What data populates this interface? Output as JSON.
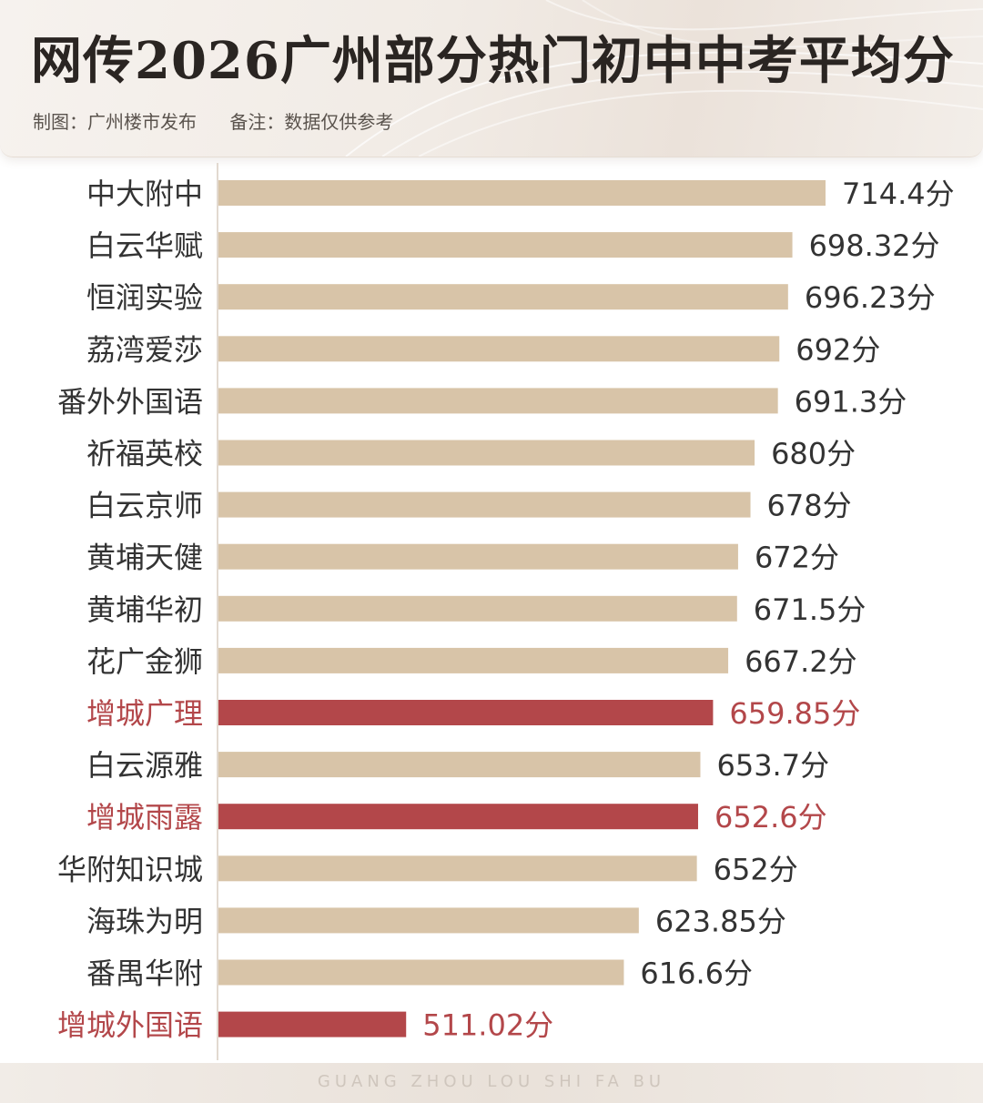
{
  "title": "网传2026广州部分热门初中中考平均分",
  "credit": "制图：广州楼市发布",
  "note": "备注：数据仅供参考",
  "footer": "GUANG ZHOU LOU SHI FA BU",
  "colors": {
    "bar": "#d8c4a8",
    "highlight_bar": "#b3474a",
    "label": "#333333",
    "highlight_label": "#b3474a"
  },
  "chart_data": {
    "type": "bar",
    "orientation": "horizontal",
    "value_suffix": "分",
    "categories": [
      "中大附中",
      "白云华赋",
      "恒润实验",
      "荔湾爱莎",
      "番外外国语",
      "祈福英校",
      "白云京师",
      "黄埔天健",
      "黄埔华初",
      "花广金狮",
      "增城广理",
      "白云源雅",
      "增城雨露",
      "华附知识城",
      "海珠为明",
      "番禺华附",
      "增城外国语"
    ],
    "values": [
      714.4,
      698.32,
      696.23,
      692,
      691.3,
      680,
      678,
      672,
      671.5,
      667.2,
      659.85,
      653.7,
      652.6,
      652,
      623.85,
      616.6,
      511.02
    ],
    "value_labels": [
      "714.4",
      "698.32",
      "696.23",
      "692",
      "691.3",
      "680",
      "678",
      "672",
      "671.5",
      "667.2",
      "659.85",
      "653.7",
      "652.6",
      "652",
      "623.85",
      "616.6",
      "511.02"
    ],
    "highlighted": [
      false,
      false,
      false,
      false,
      false,
      false,
      false,
      false,
      false,
      false,
      true,
      false,
      true,
      false,
      false,
      false,
      true
    ],
    "xlim": [
      420,
      720
    ],
    "grid": false,
    "legend": "none"
  }
}
